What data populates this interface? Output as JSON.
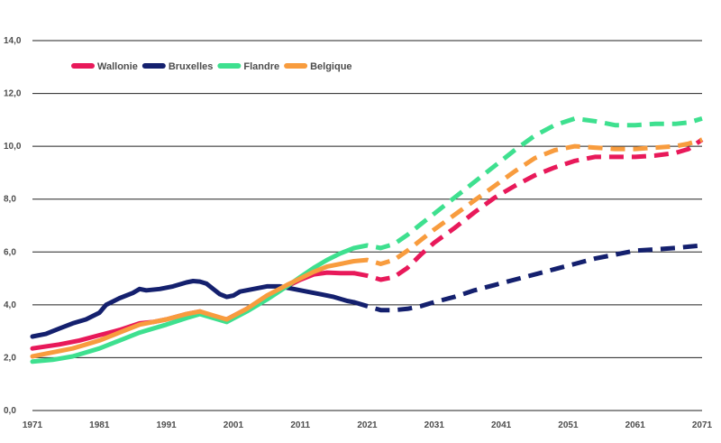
{
  "chart_data": {
    "type": "line",
    "title": "",
    "xlabel": "",
    "ylabel": "",
    "xlim": [
      1971,
      2071
    ],
    "ylim": [
      0,
      14
    ],
    "x_ticks": [
      "1971",
      "1981",
      "1991",
      "2001",
      "2011",
      "2021",
      "2031",
      "2041",
      "2051",
      "2061",
      "2071"
    ],
    "y_ticks": [
      "0,0",
      "2,0",
      "4,0",
      "6,0",
      "8,0",
      "10,0",
      "12,0",
      "14,0"
    ],
    "grid": "horizontal",
    "legend_position": "top-left",
    "observed_until": 2019,
    "series": [
      {
        "name": "Wallonie",
        "color": "#e8195a",
        "points": [
          [
            1971,
            2.35
          ],
          [
            1975,
            2.5
          ],
          [
            1978,
            2.65
          ],
          [
            1981,
            2.85
          ],
          [
            1984,
            3.05
          ],
          [
            1987,
            3.3
          ],
          [
            1989,
            3.35
          ],
          [
            1991,
            3.45
          ],
          [
            1994,
            3.65
          ],
          [
            1996,
            3.75
          ],
          [
            1998,
            3.55
          ],
          [
            2000,
            3.45
          ],
          [
            2003,
            3.85
          ],
          [
            2006,
            4.3
          ],
          [
            2009,
            4.7
          ],
          [
            2011,
            4.95
          ],
          [
            2013,
            5.15
          ],
          [
            2015,
            5.22
          ],
          [
            2017,
            5.2
          ],
          [
            2019,
            5.2
          ],
          [
            2021,
            5.1
          ],
          [
            2023,
            4.95
          ],
          [
            2025,
            5.05
          ],
          [
            2027,
            5.4
          ],
          [
            2029,
            5.9
          ],
          [
            2031,
            6.35
          ],
          [
            2034,
            6.9
          ],
          [
            2037,
            7.5
          ],
          [
            2040,
            8.05
          ],
          [
            2043,
            8.5
          ],
          [
            2046,
            8.9
          ],
          [
            2049,
            9.2
          ],
          [
            2052,
            9.45
          ],
          [
            2055,
            9.6
          ],
          [
            2058,
            9.6
          ],
          [
            2061,
            9.6
          ],
          [
            2064,
            9.65
          ],
          [
            2067,
            9.75
          ],
          [
            2069,
            9.9
          ],
          [
            2071,
            10.25
          ]
        ]
      },
      {
        "name": "Bruxelles",
        "color": "#14206e",
        "points": [
          [
            1971,
            2.8
          ],
          [
            1973,
            2.9
          ],
          [
            1975,
            3.1
          ],
          [
            1977,
            3.3
          ],
          [
            1979,
            3.45
          ],
          [
            1981,
            3.7
          ],
          [
            1982,
            4.0
          ],
          [
            1984,
            4.25
          ],
          [
            1986,
            4.45
          ],
          [
            1987,
            4.6
          ],
          [
            1988,
            4.55
          ],
          [
            1990,
            4.6
          ],
          [
            1992,
            4.7
          ],
          [
            1994,
            4.85
          ],
          [
            1995,
            4.9
          ],
          [
            1996,
            4.88
          ],
          [
            1997,
            4.8
          ],
          [
            1998,
            4.6
          ],
          [
            1999,
            4.4
          ],
          [
            2000,
            4.3
          ],
          [
            2001,
            4.35
          ],
          [
            2002,
            4.5
          ],
          [
            2004,
            4.6
          ],
          [
            2006,
            4.7
          ],
          [
            2008,
            4.7
          ],
          [
            2010,
            4.6
          ],
          [
            2012,
            4.5
          ],
          [
            2014,
            4.4
          ],
          [
            2016,
            4.3
          ],
          [
            2018,
            4.15
          ],
          [
            2019,
            4.1
          ],
          [
            2021,
            3.95
          ],
          [
            2023,
            3.8
          ],
          [
            2025,
            3.8
          ],
          [
            2027,
            3.85
          ],
          [
            2029,
            3.95
          ],
          [
            2031,
            4.1
          ],
          [
            2034,
            4.3
          ],
          [
            2037,
            4.55
          ],
          [
            2040,
            4.75
          ],
          [
            2043,
            4.95
          ],
          [
            2046,
            5.15
          ],
          [
            2049,
            5.35
          ],
          [
            2052,
            5.55
          ],
          [
            2055,
            5.75
          ],
          [
            2058,
            5.9
          ],
          [
            2061,
            6.05
          ],
          [
            2064,
            6.1
          ],
          [
            2067,
            6.15
          ],
          [
            2069,
            6.2
          ],
          [
            2071,
            6.25
          ]
        ]
      },
      {
        "name": "Flandre",
        "color": "#3ee08f",
        "points": [
          [
            1971,
            1.85
          ],
          [
            1974,
            1.92
          ],
          [
            1977,
            2.05
          ],
          [
            1979,
            2.2
          ],
          [
            1981,
            2.35
          ],
          [
            1984,
            2.65
          ],
          [
            1987,
            2.95
          ],
          [
            1989,
            3.1
          ],
          [
            1991,
            3.25
          ],
          [
            1994,
            3.5
          ],
          [
            1996,
            3.65
          ],
          [
            1998,
            3.5
          ],
          [
            2000,
            3.35
          ],
          [
            2003,
            3.75
          ],
          [
            2006,
            4.2
          ],
          [
            2009,
            4.7
          ],
          [
            2011,
            5.05
          ],
          [
            2013,
            5.4
          ],
          [
            2015,
            5.7
          ],
          [
            2017,
            5.95
          ],
          [
            2019,
            6.15
          ],
          [
            2021,
            6.25
          ],
          [
            2023,
            6.15
          ],
          [
            2025,
            6.3
          ],
          [
            2027,
            6.65
          ],
          [
            2029,
            7.05
          ],
          [
            2031,
            7.45
          ],
          [
            2034,
            8.05
          ],
          [
            2037,
            8.65
          ],
          [
            2040,
            9.25
          ],
          [
            2043,
            9.85
          ],
          [
            2046,
            10.4
          ],
          [
            2049,
            10.8
          ],
          [
            2052,
            11.05
          ],
          [
            2055,
            10.95
          ],
          [
            2058,
            10.8
          ],
          [
            2061,
            10.8
          ],
          [
            2064,
            10.85
          ],
          [
            2067,
            10.85
          ],
          [
            2069,
            10.9
          ],
          [
            2071,
            11.05
          ]
        ]
      },
      {
        "name": "Belgique",
        "color": "#f89c3e",
        "points": [
          [
            1971,
            2.05
          ],
          [
            1974,
            2.2
          ],
          [
            1977,
            2.35
          ],
          [
            1979,
            2.5
          ],
          [
            1981,
            2.65
          ],
          [
            1984,
            2.95
          ],
          [
            1987,
            3.25
          ],
          [
            1989,
            3.35
          ],
          [
            1991,
            3.45
          ],
          [
            1994,
            3.65
          ],
          [
            1996,
            3.75
          ],
          [
            1998,
            3.6
          ],
          [
            2000,
            3.45
          ],
          [
            2003,
            3.85
          ],
          [
            2006,
            4.35
          ],
          [
            2009,
            4.75
          ],
          [
            2011,
            5.0
          ],
          [
            2013,
            5.25
          ],
          [
            2015,
            5.45
          ],
          [
            2017,
            5.55
          ],
          [
            2019,
            5.65
          ],
          [
            2021,
            5.7
          ],
          [
            2023,
            5.55
          ],
          [
            2025,
            5.7
          ],
          [
            2027,
            6.05
          ],
          [
            2029,
            6.45
          ],
          [
            2031,
            6.85
          ],
          [
            2034,
            7.4
          ],
          [
            2037,
            7.95
          ],
          [
            2040,
            8.5
          ],
          [
            2043,
            9.05
          ],
          [
            2046,
            9.55
          ],
          [
            2049,
            9.85
          ],
          [
            2052,
            10.0
          ],
          [
            2055,
            9.95
          ],
          [
            2058,
            9.9
          ],
          [
            2061,
            9.9
          ],
          [
            2064,
            9.95
          ],
          [
            2067,
            10.0
          ],
          [
            2069,
            10.1
          ],
          [
            2071,
            10.25
          ]
        ]
      }
    ]
  }
}
